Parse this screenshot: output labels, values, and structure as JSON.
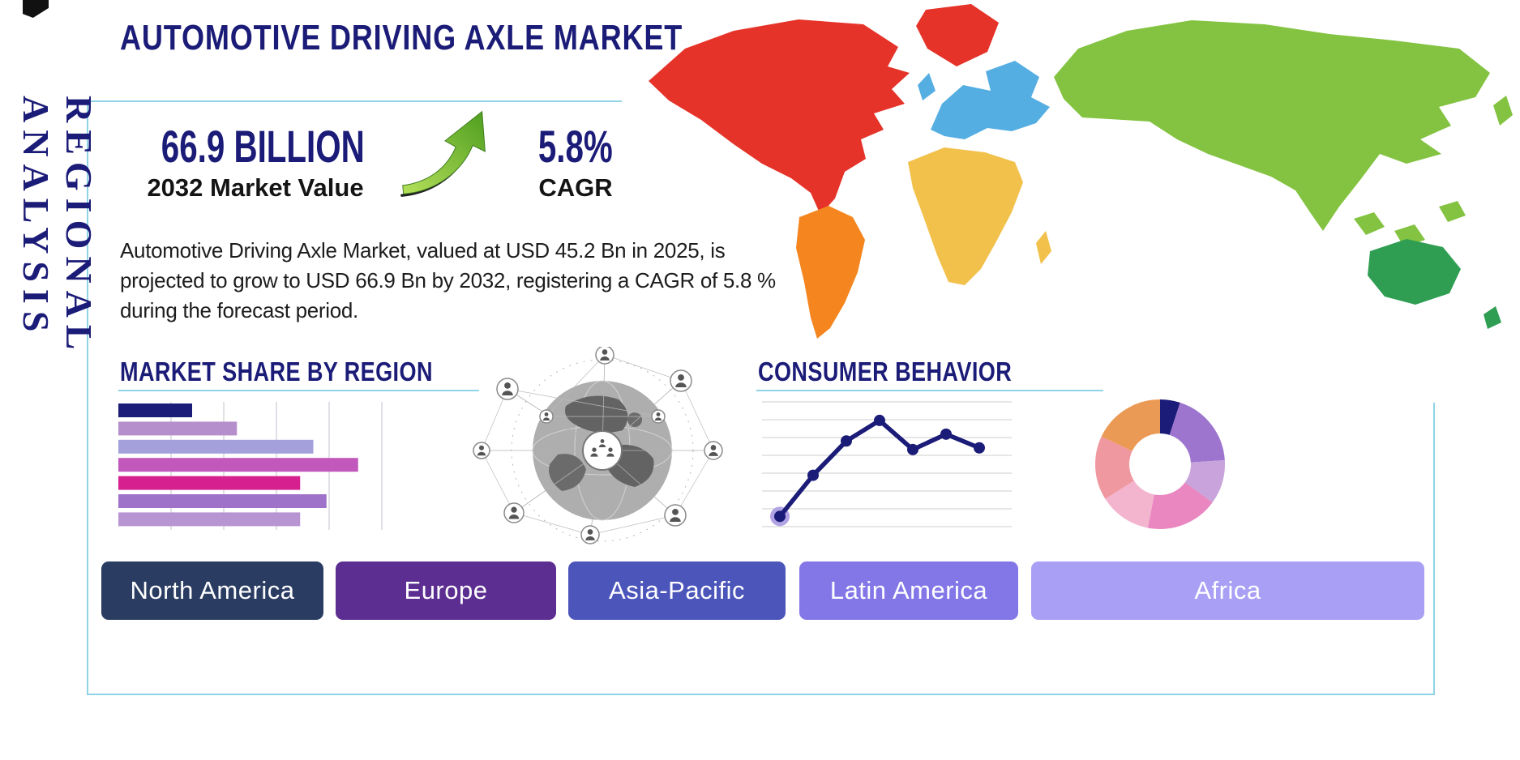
{
  "header": {
    "title": "AUTOMOTIVE DRIVING AXLE MARKET"
  },
  "side_label": "REGIONAL ANALYSIS",
  "stats": {
    "value": "66.9 BILLION",
    "value_caption": "2032 Market Value",
    "cagr": "5.8%",
    "cagr_caption": "CAGR"
  },
  "description": "Automotive Driving Axle Market, valued at USD 45.2 Bn in 2025, is projected to grow to USD 66.9 Bn by 2032, registering a CAGR of 5.8 % during the forecast period.",
  "sections": {
    "market_share_title": "MARKET SHARE BY REGION",
    "consumer_title": "CONSUMER BEHAVIOR"
  },
  "region_buttons": [
    {
      "label": "North America",
      "color": "#2a3c61"
    },
    {
      "label": "Europe",
      "color": "#5c2e91"
    },
    {
      "label": "Asia-Pacific",
      "color": "#4c55ba"
    },
    {
      "label": "Latin America",
      "color": "#8377e8"
    },
    {
      "label": "Africa",
      "color": "#a99ff5"
    }
  ],
  "accent_colors": {
    "navy": "#1b1b78",
    "frame_teal": "#8fd3e6",
    "arrow_green": "#76c13a"
  },
  "map": {
    "region_colors": {
      "north_america": "#e63329",
      "greenland": "#e63329",
      "south_america": "#f5861f",
      "europe": "#55aee2",
      "uk": "#55aee2",
      "africa": "#f2c14b",
      "madagascar": "#f2c14b",
      "asia": "#83c341",
      "se_asia_1": "#83c341",
      "se_asia_2": "#83c341",
      "se_asia_3": "#83c341",
      "japan": "#83c341",
      "australia": "#2f9e52",
      "new_zealand": "#2f9e52"
    }
  },
  "chart_data": [
    {
      "type": "bar",
      "title": "MARKET SHARE BY REGION",
      "orientation": "horizontal",
      "categories_visible": false,
      "values": [
        28,
        45,
        74,
        91,
        69,
        79,
        69
      ],
      "value_unit": "percent of axis width (axis unlabeled)",
      "colors": [
        "#1b1b78",
        "#b58fcb",
        "#a3a0dc",
        "#c258bc",
        "#d6208f",
        "#9e72c8",
        "#b795d2"
      ],
      "grid": true,
      "grid_color": "#c2c2cc"
    },
    {
      "type": "line",
      "title": "CONSUMER BEHAVIOR",
      "x_labels_visible": false,
      "values": [
        0.6,
        3.0,
        5.0,
        6.2,
        4.5,
        5.4,
        4.6
      ],
      "ylim": [
        0,
        7
      ],
      "line_color": "#1b1b78",
      "halo_color": "#b2a4e4",
      "grid": true,
      "grid_color": "#cccccc"
    },
    {
      "type": "pie",
      "subtype": "donut",
      "labels_visible": false,
      "values": [
        5,
        19,
        11,
        18,
        13,
        16,
        18
      ],
      "colors": [
        "#1b1b78",
        "#9d75cf",
        "#c9a3dc",
        "#ea86c0",
        "#f3b5ce",
        "#ef989f",
        "#eb9a55"
      ],
      "start": "top, clockwise"
    }
  ]
}
